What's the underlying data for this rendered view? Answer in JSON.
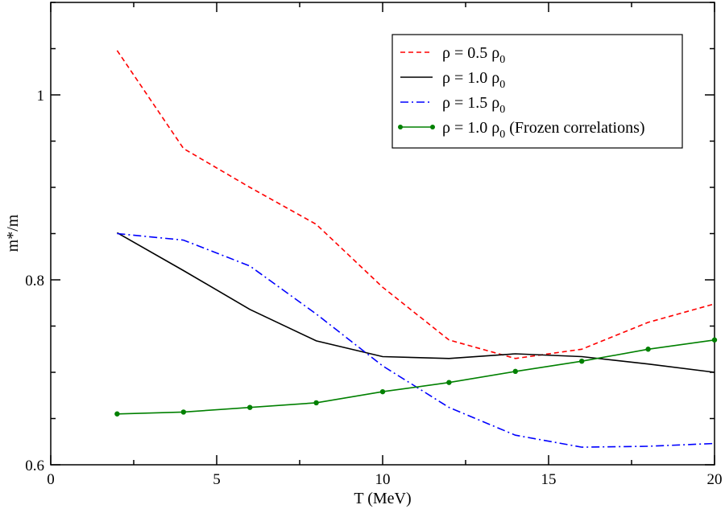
{
  "chart_data": {
    "type": "line",
    "xlabel": "T (MeV)",
    "ylabel": "m*/m",
    "xlim": [
      0,
      20
    ],
    "ylim": [
      0.6,
      1.1
    ],
    "xticks": [
      0,
      5,
      10,
      15,
      20
    ],
    "yticks": [
      0.6,
      0.8,
      1.0
    ],
    "ytick_labels": [
      "0.6",
      "0.8",
      "1"
    ],
    "grid": false,
    "legend_position": "top-right",
    "series": [
      {
        "name": "ρ = 0.5 ρ",
        "name_sub": "0",
        "name_suffix": "",
        "color": "#ff0000",
        "style": "dashed",
        "markers": false,
        "x": [
          2,
          4,
          6,
          8,
          10,
          12,
          14,
          16,
          18,
          20
        ],
        "y": [
          1.048,
          0.942,
          0.9,
          0.86,
          0.792,
          0.735,
          0.715,
          0.725,
          0.754,
          0.774
        ]
      },
      {
        "name": "ρ = 1.0 ρ",
        "name_sub": "0",
        "name_suffix": "",
        "color": "#000000",
        "style": "solid",
        "markers": false,
        "x": [
          2,
          4,
          6,
          8,
          10,
          12,
          14,
          16,
          18,
          20
        ],
        "y": [
          0.851,
          0.81,
          0.768,
          0.734,
          0.717,
          0.715,
          0.72,
          0.717,
          0.709,
          0.7
        ]
      },
      {
        "name": "ρ = 1.5 ρ",
        "name_sub": "0",
        "name_suffix": "",
        "color": "#0000ff",
        "style": "dashdot",
        "markers": false,
        "x": [
          2,
          4,
          6,
          8,
          10,
          12,
          14,
          16,
          18,
          20
        ],
        "y": [
          0.85,
          0.843,
          0.815,
          0.763,
          0.707,
          0.662,
          0.632,
          0.619,
          0.62,
          0.623
        ]
      },
      {
        "name": "ρ = 1.0 ρ",
        "name_sub": "0",
        "name_suffix": " (Frozen correlations)",
        "color": "#008000",
        "style": "solid",
        "markers": true,
        "x": [
          2,
          4,
          6,
          8,
          10,
          12,
          14,
          16,
          18,
          20
        ],
        "y": [
          0.655,
          0.657,
          0.662,
          0.667,
          0.679,
          0.689,
          0.701,
          0.712,
          0.725,
          0.735
        ]
      }
    ]
  }
}
